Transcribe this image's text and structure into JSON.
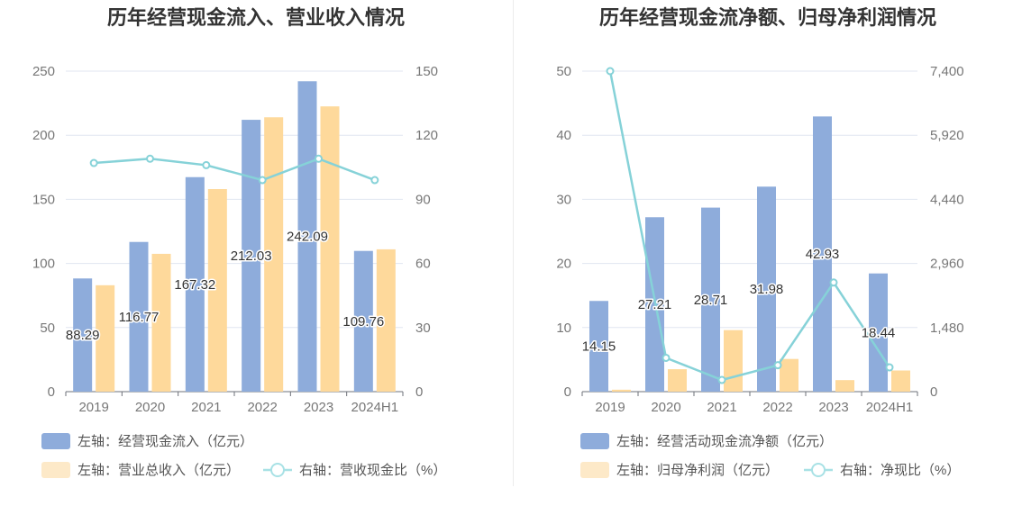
{
  "chart_data": [
    {
      "type": "bar",
      "title": "历年经营现金流入、营业收入情况",
      "categories": [
        "2019",
        "2020",
        "2021",
        "2022",
        "2023",
        "2024H1"
      ],
      "y_left": {
        "min": 0,
        "max": 250,
        "ticks": [
          "0",
          "50",
          "100",
          "150",
          "200",
          "250"
        ]
      },
      "y_right": {
        "min": 0,
        "max": 150,
        "ticks": [
          "0",
          "30",
          "60",
          "90",
          "120",
          "150"
        ]
      },
      "series": [
        {
          "name": "左轴：经营现金流入（亿元）",
          "kind": "bar",
          "axis": "left",
          "color": "#8eacdb",
          "values": [
            88.29,
            116.77,
            167.32,
            212.03,
            242.09,
            109.76
          ],
          "labels": [
            "88.29",
            "116.77",
            "167.32",
            "212.03",
            "242.09",
            "109.76"
          ]
        },
        {
          "name": "左轴：营业总收入（亿元）",
          "kind": "bar",
          "axis": "left",
          "color": "#fed99b",
          "values": [
            83,
            107.5,
            158,
            214,
            222.5,
            111
          ]
        },
        {
          "name": "右轴：营收现金比（%）",
          "kind": "line",
          "axis": "right",
          "color": "#86d2d8",
          "values": [
            107,
            109,
            106,
            99,
            109,
            99
          ]
        }
      ],
      "legend_position": "bottom-left",
      "grid": true
    },
    {
      "type": "bar",
      "title": "历年经营现金流净额、归母净利润情况",
      "categories": [
        "2019",
        "2020",
        "2021",
        "2022",
        "2023",
        "2024H1"
      ],
      "y_left": {
        "min": 0,
        "max": 50,
        "ticks": [
          "0",
          "10",
          "20",
          "30",
          "40",
          "50"
        ]
      },
      "y_right": {
        "min": 0,
        "max": 7400,
        "ticks": [
          "0",
          "1,480",
          "2,960",
          "4,440",
          "5,920",
          "7,400"
        ]
      },
      "series": [
        {
          "name": "左轴：经营活动现金流净额（亿元）",
          "kind": "bar",
          "axis": "left",
          "color": "#8eacdb",
          "values": [
            14.15,
            27.21,
            28.71,
            31.98,
            42.93,
            18.44
          ],
          "labels": [
            "14.15",
            "27.21",
            "28.71",
            "31.98",
            "42.93",
            "18.44"
          ]
        },
        {
          "name": "左轴：归母净利润（亿元）",
          "kind": "bar",
          "axis": "left",
          "color": "#fed99b",
          "values": [
            0.3,
            3.5,
            9.6,
            5.1,
            1.8,
            3.3
          ]
        },
        {
          "name": "右轴：净现比（%）",
          "kind": "line",
          "axis": "right",
          "color": "#86d2d8",
          "values": [
            7400,
            780,
            270,
            610,
            2520,
            560
          ]
        }
      ],
      "legend_position": "bottom-left",
      "grid": true
    }
  ]
}
